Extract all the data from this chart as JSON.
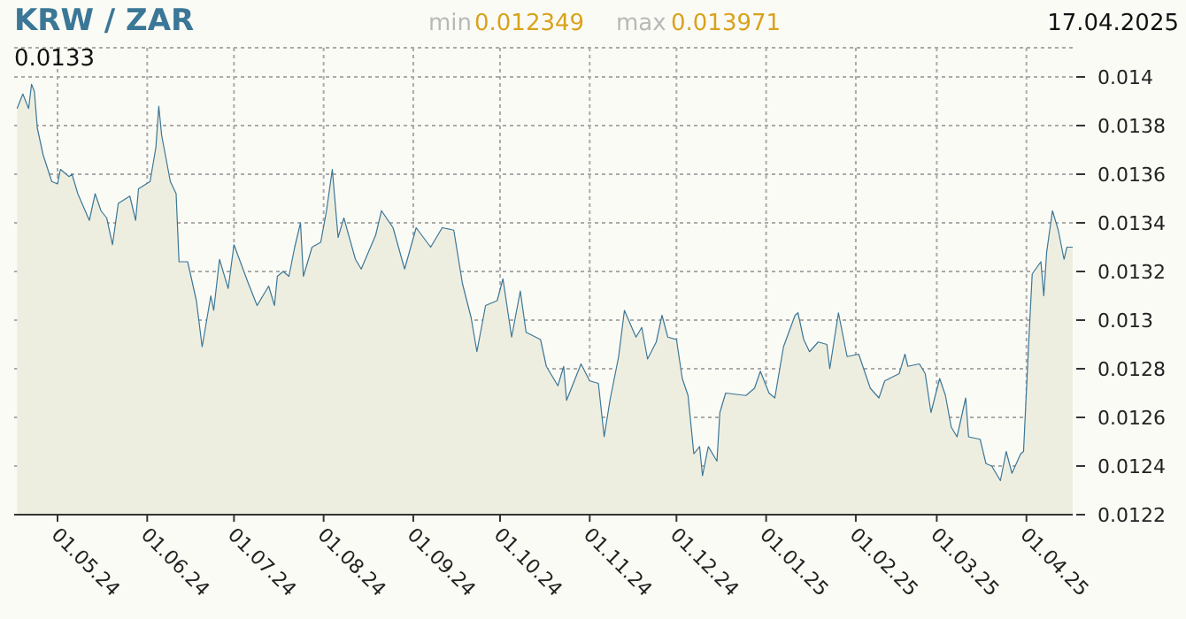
{
  "chart_data": {
    "type": "area",
    "title": "KRW / ZAR",
    "annotations": [
      "min",
      "0.012349",
      "max",
      "0.013971",
      "17.04.2025",
      "0.0133"
    ],
    "x": [
      "2024-04-17",
      "2024-04-19",
      "2024-04-21",
      "2024-04-22",
      "2024-04-23",
      "2024-04-24",
      "2024-04-26",
      "2024-04-29",
      "2024-05-01",
      "2024-05-02",
      "2024-05-05",
      "2024-05-06",
      "2024-05-08",
      "2024-05-12",
      "2024-05-14",
      "2024-05-16",
      "2024-05-18",
      "2024-05-20",
      "2024-05-22",
      "2024-05-26",
      "2024-05-28",
      "2024-05-29",
      "2024-06-02",
      "2024-06-04",
      "2024-06-05",
      "2024-06-06",
      "2024-06-09",
      "2024-06-11",
      "2024-06-12",
      "2024-06-15",
      "2024-06-18",
      "2024-06-20",
      "2024-06-23",
      "2024-06-24",
      "2024-06-26",
      "2024-06-29",
      "2024-07-01",
      "2024-07-06",
      "2024-07-09",
      "2024-07-13",
      "2024-07-15",
      "2024-07-16",
      "2024-07-18",
      "2024-07-20",
      "2024-07-22",
      "2024-07-24",
      "2024-07-25",
      "2024-07-28",
      "2024-07-31",
      "2024-08-02",
      "2024-08-04",
      "2024-08-06",
      "2024-08-08",
      "2024-08-12",
      "2024-08-14",
      "2024-08-19",
      "2024-08-21",
      "2024-08-25",
      "2024-08-29",
      "2024-09-02",
      "2024-09-07",
      "2024-09-11",
      "2024-09-15",
      "2024-09-18",
      "2024-09-21",
      "2024-09-23",
      "2024-09-26",
      "2024-09-30",
      "2024-10-02",
      "2024-10-05",
      "2024-10-08",
      "2024-10-10",
      "2024-10-15",
      "2024-10-17",
      "2024-10-21",
      "2024-10-23",
      "2024-10-24",
      "2024-10-29",
      "2024-11-01",
      "2024-11-04",
      "2024-11-06",
      "2024-11-08",
      "2024-11-11",
      "2024-11-13",
      "2024-11-17",
      "2024-11-19",
      "2024-11-21",
      "2024-11-24",
      "2024-11-26",
      "2024-11-28",
      "2024-12-01",
      "2024-12-03",
      "2024-12-05",
      "2024-12-07",
      "2024-12-09",
      "2024-12-10",
      "2024-12-12",
      "2024-12-15",
      "2024-12-16",
      "2024-12-18",
      "2024-12-25",
      "2024-12-28",
      "2024-12-30",
      "2025-01-02",
      "2025-01-04",
      "2025-01-07",
      "2025-01-11",
      "2025-01-12",
      "2025-01-14",
      "2025-01-16",
      "2025-01-19",
      "2025-01-22",
      "2025-01-23",
      "2025-01-26",
      "2025-01-29",
      "2025-02-02",
      "2025-02-04",
      "2025-02-06",
      "2025-02-09",
      "2025-02-11",
      "2025-02-16",
      "2025-02-18",
      "2025-02-19",
      "2025-02-23",
      "2025-02-25",
      "2025-02-27",
      "2025-03-02",
      "2025-03-04",
      "2025-03-06",
      "2025-03-08",
      "2025-03-11",
      "2025-03-12",
      "2025-03-16",
      "2025-03-18",
      "2025-03-20",
      "2025-03-23",
      "2025-03-25",
      "2025-03-27",
      "2025-03-30",
      "2025-03-31",
      "2025-04-02",
      "2025-04-03",
      "2025-04-06",
      "2025-04-07",
      "2025-04-08",
      "2025-04-10",
      "2025-04-12",
      "2025-04-14",
      "2025-04-15",
      "2025-04-17"
    ],
    "series": [
      {
        "color": "#3b7797",
        "values": [
          0.01387,
          0.01393,
          0.01387,
          0.01397,
          0.01394,
          0.01379,
          0.01368,
          0.01357,
          0.01356,
          0.01362,
          0.01359,
          0.0136,
          0.01352,
          0.01341,
          0.01352,
          0.01345,
          0.01342,
          0.01331,
          0.01348,
          0.01351,
          0.01341,
          0.01354,
          0.01357,
          0.01371,
          0.01388,
          0.01376,
          0.01357,
          0.01352,
          0.01324,
          0.01324,
          0.01308,
          0.01289,
          0.0131,
          0.01304,
          0.01325,
          0.01313,
          0.01331,
          0.01315,
          0.01306,
          0.01314,
          0.01306,
          0.01318,
          0.0132,
          0.01318,
          0.0133,
          0.0134,
          0.01318,
          0.0133,
          0.01332,
          0.01345,
          0.01362,
          0.01334,
          0.01342,
          0.01325,
          0.01321,
          0.01335,
          0.01345,
          0.01338,
          0.01321,
          0.01338,
          0.0133,
          0.01338,
          0.01337,
          0.01315,
          0.01301,
          0.01287,
          0.01306,
          0.01308,
          0.01317,
          0.01293,
          0.01312,
          0.01295,
          0.01292,
          0.01281,
          0.01273,
          0.01281,
          0.01267,
          0.01282,
          0.01275,
          0.01274,
          0.01252,
          0.01267,
          0.01285,
          0.01304,
          0.01293,
          0.01297,
          0.01284,
          0.01291,
          0.01302,
          0.01293,
          0.01292,
          0.01276,
          0.01269,
          0.01245,
          0.01248,
          0.01236,
          0.01248,
          0.01242,
          0.01262,
          0.0127,
          0.01269,
          0.01272,
          0.01279,
          0.0127,
          0.01268,
          0.01289,
          0.01302,
          0.01303,
          0.01292,
          0.01287,
          0.01291,
          0.0129,
          0.0128,
          0.01303,
          0.01285,
          0.01286,
          0.01279,
          0.01272,
          0.01268,
          0.01275,
          0.01278,
          0.01286,
          0.01281,
          0.01282,
          0.01278,
          0.01262,
          0.01276,
          0.01269,
          0.01256,
          0.01252,
          0.01268,
          0.01252,
          0.01251,
          0.01241,
          0.0124,
          0.01234,
          0.01246,
          0.01237,
          0.01245,
          0.01246,
          0.01296,
          0.01319,
          0.01324,
          0.0131,
          0.01328,
          0.01345,
          0.01337,
          0.01325,
          0.0133,
          0.0133
        ]
      }
    ],
    "xlim": [
      "2024-04-16",
      "2025-04-17"
    ],
    "xticks": [
      {
        "value": "2024-05-01",
        "label": "01.05.24"
      },
      {
        "value": "2024-06-01",
        "label": "01.06.24"
      },
      {
        "value": "2024-07-01",
        "label": "01.07.24"
      },
      {
        "value": "2024-08-01",
        "label": "01.08.24"
      },
      {
        "value": "2024-09-01",
        "label": "01.09.24"
      },
      {
        "value": "2024-10-01",
        "label": "01.10.24"
      },
      {
        "value": "2024-11-01",
        "label": "01.11.24"
      },
      {
        "value": "2024-12-01",
        "label": "01.12.24"
      },
      {
        "value": "2025-01-01",
        "label": "01.01.25"
      },
      {
        "value": "2025-02-01",
        "label": "01.02.25"
      },
      {
        "value": "2025-03-01",
        "label": "01.03.25"
      },
      {
        "value": "2025-04-01",
        "label": "01.04.25"
      }
    ],
    "ylim": [
      0.0122,
      0.01412
    ],
    "yticks": [
      0.0122,
      0.0124,
      0.0126,
      0.0128,
      0.013,
      0.0132,
      0.0134,
      0.0136,
      0.0138,
      0.014
    ],
    "grid": true,
    "marker": "none",
    "line_style": "solid"
  }
}
